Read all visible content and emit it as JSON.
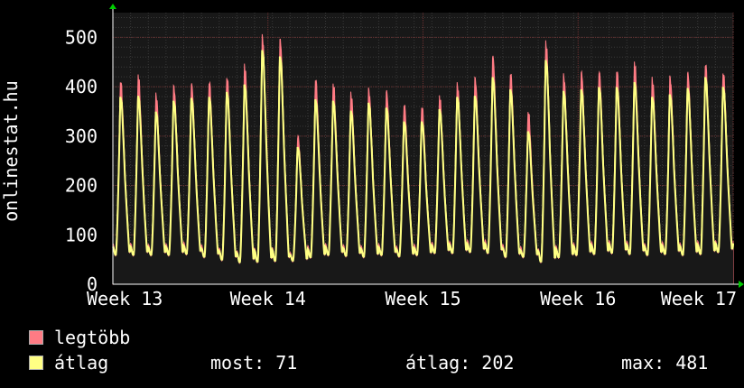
{
  "chart_data": {
    "type": "line",
    "ylabel": "onlinestat.hu",
    "ylim": [
      0,
      550
    ],
    "yticks": [
      0,
      100,
      200,
      300,
      400,
      500
    ],
    "xticks": [
      "Week 13",
      "Week 14",
      "Week 15",
      "Week 16",
      "Week 17"
    ],
    "grid": true,
    "days": 35,
    "series": [
      {
        "name": "legtöbb",
        "color": "#ff7b84",
        "style": "filled-area",
        "daily_peak": [
          413,
          423,
          383,
          401,
          407,
          412,
          420,
          443,
          502,
          497,
          301,
          418,
          406,
          385,
          395,
          392,
          365,
          361,
          380,
          404,
          418,
          464,
          430,
          350,
          490,
          423,
          430,
          432,
          435,
          450,
          415,
          420,
          430,
          448,
          430
        ],
        "daily_low": [
          65,
          65,
          65,
          65,
          68,
          62,
          55,
          48,
          50,
          52,
          52,
          60,
          65,
          64,
          62,
          65,
          62,
          66,
          70,
          70,
          72,
          70,
          62,
          62,
          50,
          60,
          65,
          68,
          70,
          68,
          65,
          68,
          65,
          68,
          70
        ]
      },
      {
        "name": "átlag",
        "color": "#ffff84",
        "style": "line",
        "daily_peak": [
          380,
          382,
          350,
          372,
          378,
          380,
          390,
          405,
          475,
          462,
          278,
          375,
          372,
          352,
          368,
          358,
          330,
          330,
          355,
          380,
          382,
          420,
          395,
          310,
          455,
          392,
          395,
          400,
          400,
          410,
          380,
          385,
          398,
          420,
          400
        ],
        "daily_low": [
          60,
          60,
          60,
          60,
          62,
          56,
          50,
          45,
          46,
          48,
          48,
          55,
          60,
          58,
          56,
          60,
          57,
          60,
          64,
          64,
          66,
          64,
          56,
          56,
          46,
          55,
          60,
          62,
          64,
          62,
          60,
          62,
          60,
          62,
          66
        ]
      }
    ]
  },
  "legend": {
    "max_label": "legtöbb",
    "avg_label": "átlag",
    "max_color": "#ff7b84",
    "avg_color": "#ffff84"
  },
  "stats": {
    "now": "most: 71",
    "avg": "átlag: 202",
    "max": "max: 481"
  }
}
